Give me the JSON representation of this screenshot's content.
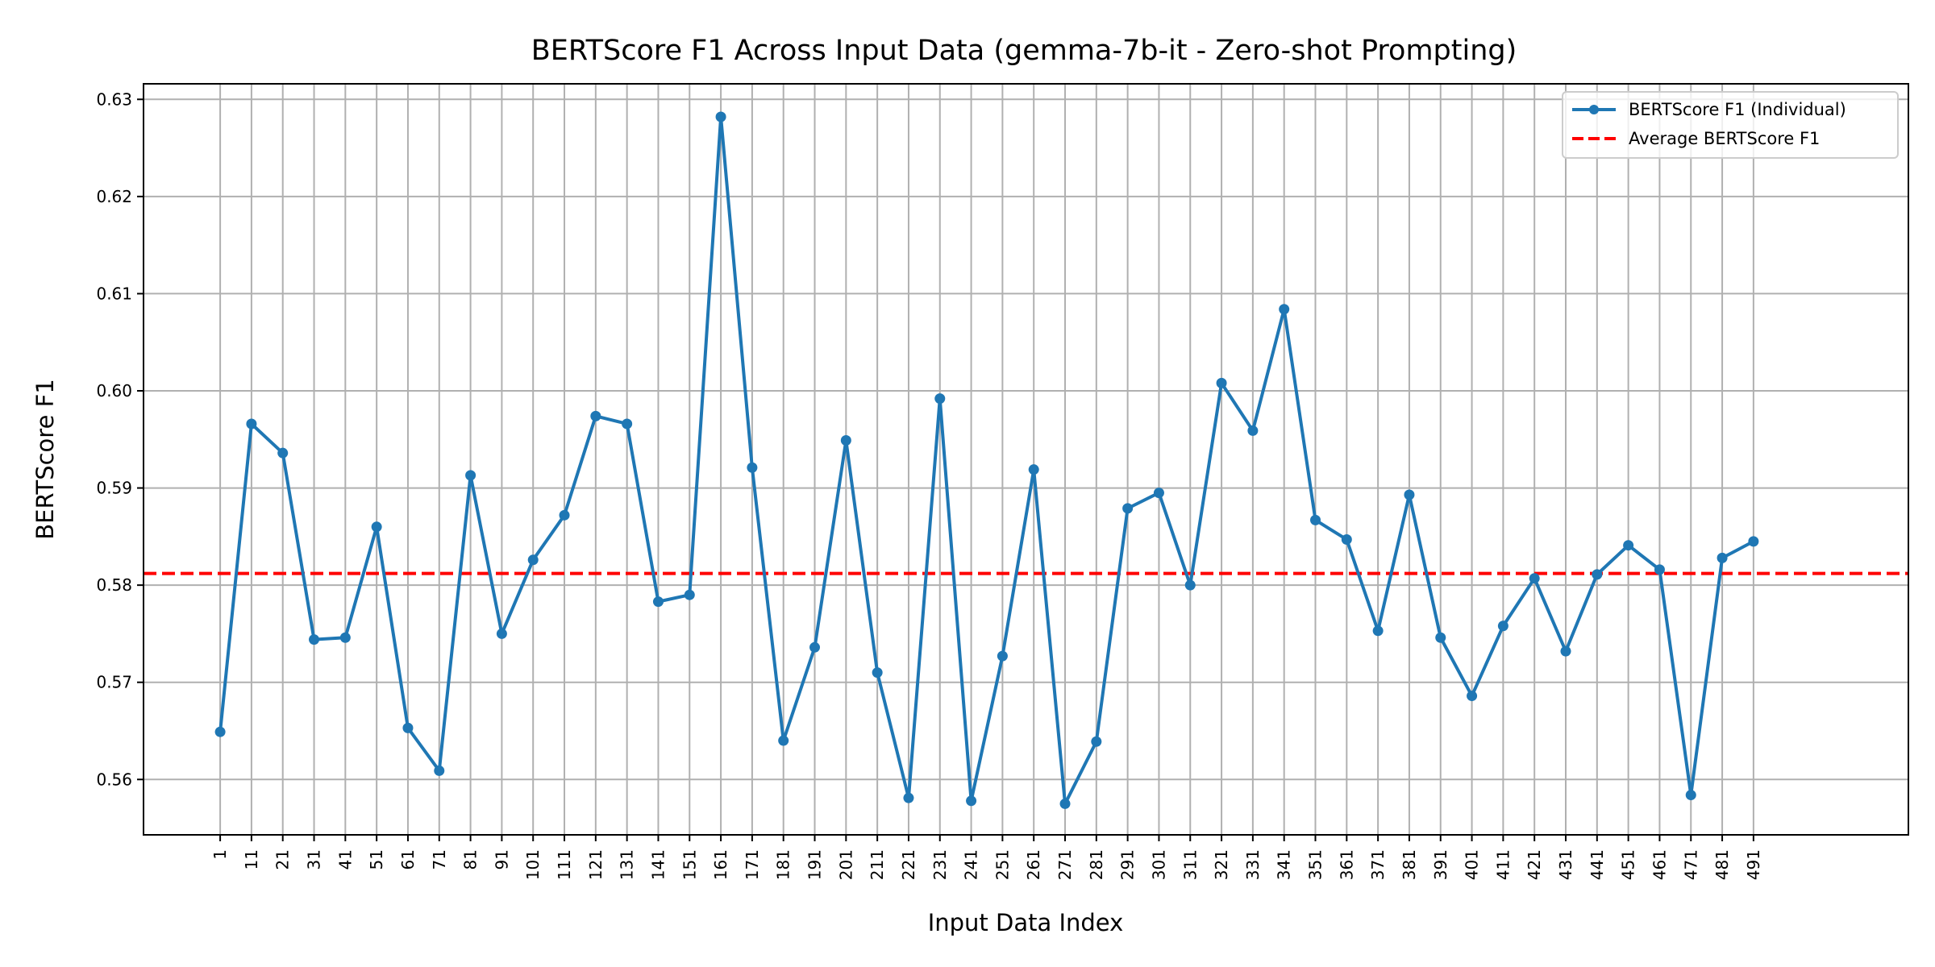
{
  "chart_data": {
    "type": "line",
    "title": "BERTScore F1 Across Input Data (gemma-7b-it - Zero-shot Prompting)",
    "xlabel": "Input Data Index",
    "ylabel": "BERTScore F1",
    "xlim": [
      -23.5,
      540.5
    ],
    "ylim": [
      0.5543,
      0.6316
    ],
    "yticks": [
      0.56,
      0.57,
      0.58,
      0.59,
      0.6,
      0.61,
      0.62,
      0.63
    ],
    "ytick_labels": [
      "0.56",
      "0.57",
      "0.58",
      "0.59",
      "0.60",
      "0.61",
      "0.62",
      "0.63"
    ],
    "grid": true,
    "legend": {
      "placement": "top-right",
      "entries": [
        "BERTScore F1 (Individual)",
        "Average BERTScore F1"
      ]
    },
    "x": [
      1,
      11,
      21,
      31,
      41,
      51,
      61,
      71,
      81,
      91,
      101,
      111,
      121,
      131,
      141,
      151,
      161,
      171,
      181,
      191,
      201,
      211,
      221,
      231,
      241,
      251,
      261,
      271,
      281,
      291,
      301,
      311,
      321,
      331,
      341,
      351,
      361,
      371,
      381,
      391,
      401,
      411,
      421,
      431,
      441,
      451,
      461,
      471,
      481,
      491
    ],
    "xtick_labels": [
      "1",
      "11",
      "21",
      "31",
      "41",
      "51",
      "61",
      "71",
      "81",
      "91",
      "101",
      "111",
      "121",
      "131",
      "141",
      "151",
      "161",
      "171",
      "181",
      "191",
      "201",
      "211",
      "221",
      "231",
      "241",
      "251",
      "261",
      "271",
      "281",
      "291",
      "301",
      "311",
      "321",
      "331",
      "341",
      "351",
      "361",
      "371",
      "381",
      "391",
      "401",
      "411",
      "421",
      "431",
      "441",
      "451",
      "461",
      "471",
      "481",
      "491"
    ],
    "series": [
      {
        "name": "BERTScore F1 (Individual)",
        "color": "#1f77b4",
        "style": "solid-with-markers",
        "values": [
          0.5649,
          0.5966,
          0.5936,
          0.5744,
          0.5746,
          0.586,
          0.5653,
          0.5609,
          0.5913,
          0.575,
          0.5826,
          0.5872,
          0.5974,
          0.5966,
          0.5783,
          0.579,
          0.6282,
          0.5921,
          0.564,
          0.5736,
          0.5949,
          0.571,
          0.5581,
          0.5992,
          0.5578,
          0.5727,
          0.5919,
          0.5575,
          0.5639,
          0.5879,
          0.5895,
          0.58,
          0.6008,
          0.5959,
          0.6084,
          0.5867,
          0.5847,
          0.5753,
          0.5893,
          0.5746,
          0.5686,
          0.5758,
          0.5807,
          0.5732,
          0.5811,
          0.5841,
          0.5816,
          0.5584,
          0.5828,
          0.5845
        ]
      },
      {
        "name": "Average BERTScore F1",
        "color": "#ff0000",
        "style": "dashed",
        "constant": 0.5812
      }
    ]
  }
}
